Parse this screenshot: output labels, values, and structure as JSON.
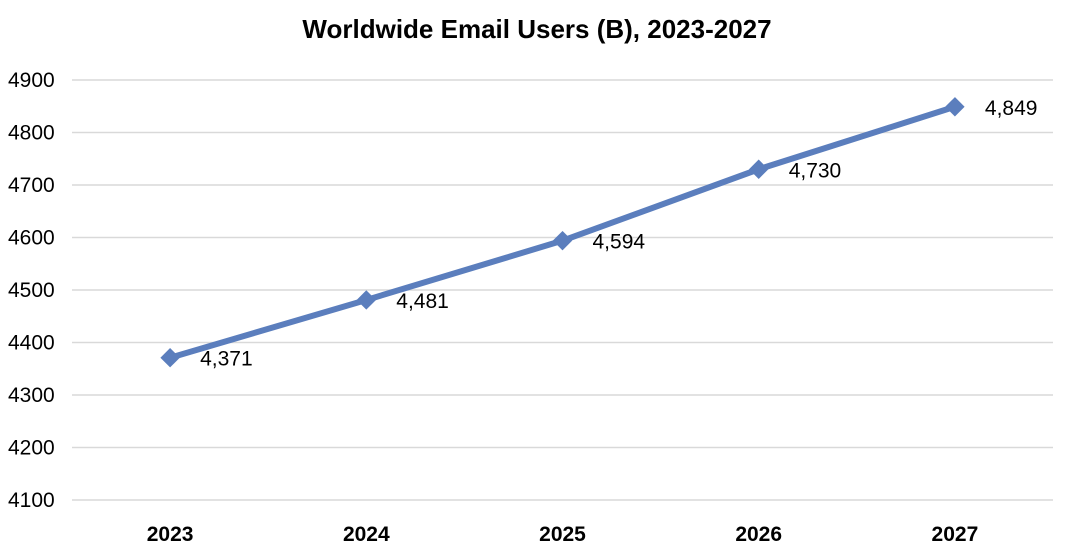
{
  "chart_data": {
    "type": "line",
    "title": "Worldwide Email Users (B), 2023-2027",
    "xlabel": "",
    "ylabel": "",
    "categories": [
      "2023",
      "2024",
      "2025",
      "2026",
      "2027"
    ],
    "series": [
      {
        "name": "Worldwide Email Users (B)",
        "values": [
          4371,
          4481,
          4594,
          4730,
          4849
        ],
        "labels": [
          "4,371",
          "4,481",
          "4,594",
          "4,730",
          "4,849"
        ],
        "color": "#5b7ebd",
        "marker": "diamond"
      }
    ],
    "yticks": [
      "4100",
      "4200",
      "4300",
      "4400",
      "4500",
      "4600",
      "4700",
      "4800",
      "4900"
    ],
    "ylim": [
      4100,
      4900
    ],
    "grid": true,
    "legend": "none"
  }
}
